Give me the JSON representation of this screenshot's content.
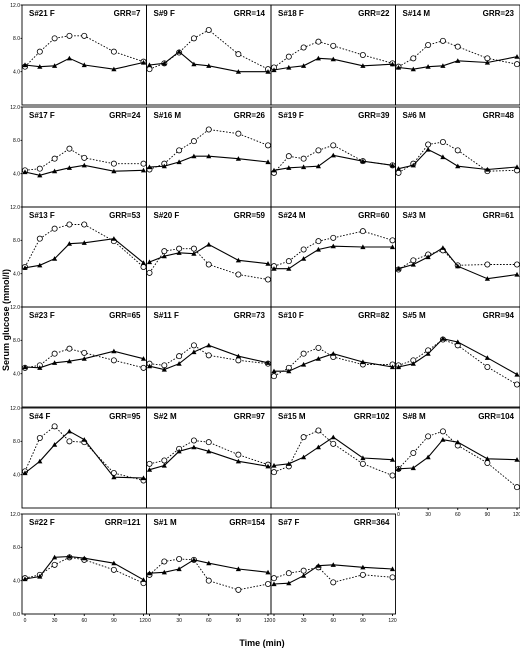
{
  "figure": {
    "ylabel": "Serum glucose (mmol/l)",
    "xlabel": "Time (min)",
    "y_ticks": [
      "12.0",
      "8.0",
      "4.0",
      "0.0"
    ],
    "x_ticks": [
      "0",
      "30",
      "60",
      "90",
      "120"
    ]
  },
  "chart_data": [
    {
      "type": "line",
      "subject": "S#21 F",
      "grr": "GRR=7",
      "x": [
        0,
        15,
        30,
        45,
        60,
        90,
        120
      ],
      "series": [
        {
          "values": [
            4.6,
            6.4,
            8.0,
            8.3,
            8.3,
            6.4,
            5.2
          ]
        },
        {
          "values": [
            4.8,
            4.6,
            4.7,
            5.6,
            4.8,
            4.3,
            5.1
          ]
        }
      ]
    },
    {
      "type": "line",
      "subject": "S#9 F",
      "grr": "GRR=14",
      "x": [
        0,
        15,
        30,
        45,
        60,
        90,
        120
      ],
      "series": [
        {
          "values": [
            4.3,
            5.0,
            6.3,
            8.0,
            9.0,
            6.1,
            4.3
          ]
        },
        {
          "values": [
            4.8,
            5.0,
            6.4,
            4.9,
            4.7,
            4.0,
            4.0
          ]
        }
      ]
    },
    {
      "type": "line",
      "subject": "S#18 F",
      "grr": "GRR=22",
      "x": [
        0,
        15,
        30,
        45,
        60,
        90,
        120
      ],
      "series": [
        {
          "values": [
            4.5,
            5.8,
            6.9,
            7.6,
            7.1,
            6.0,
            5.0
          ]
        },
        {
          "values": [
            4.2,
            4.5,
            4.7,
            5.6,
            5.5,
            4.7,
            4.9
          ]
        }
      ]
    },
    {
      "type": "line",
      "subject": "S#14 M",
      "grr": "GRR=23",
      "x": [
        0,
        15,
        30,
        45,
        60,
        90,
        120
      ],
      "series": [
        {
          "values": [
            4.6,
            5.6,
            7.2,
            7.7,
            7.0,
            5.6,
            4.9
          ]
        },
        {
          "values": [
            4.5,
            4.3,
            4.6,
            4.7,
            5.3,
            5.1,
            5.8
          ]
        }
      ]
    },
    {
      "type": "line",
      "subject": "S#17 F",
      "grr": "GRR=24",
      "x": [
        0,
        15,
        30,
        45,
        60,
        90,
        120
      ],
      "series": [
        {
          "values": [
            4.4,
            4.6,
            5.8,
            7.0,
            5.9,
            5.2,
            5.2
          ]
        },
        {
          "values": [
            4.2,
            3.8,
            4.3,
            4.7,
            5.0,
            4.3,
            4.4
          ]
        }
      ]
    },
    {
      "type": "line",
      "subject": "S#16 M",
      "grr": "GRR=26",
      "x": [
        0,
        15,
        30,
        45,
        60,
        90,
        120
      ],
      "series": [
        {
          "values": [
            4.5,
            5.2,
            6.8,
            7.9,
            9.3,
            8.8,
            7.4
          ]
        },
        {
          "values": [
            4.8,
            4.9,
            5.4,
            6.1,
            6.1,
            5.8,
            5.4
          ]
        }
      ]
    },
    {
      "type": "line",
      "subject": "S#19 F",
      "grr": "GRR=39",
      "x": [
        0,
        15,
        30,
        45,
        60,
        90,
        120
      ],
      "series": [
        {
          "values": [
            4.1,
            6.1,
            5.8,
            6.8,
            7.4,
            5.5,
            5.0
          ]
        },
        {
          "values": [
            4.4,
            4.7,
            4.8,
            4.9,
            6.2,
            5.5,
            5.0
          ]
        }
      ]
    },
    {
      "type": "line",
      "subject": "S#6 M",
      "grr": "GRR=48",
      "x": [
        0,
        15,
        30,
        45,
        60,
        90,
        120
      ],
      "series": [
        {
          "values": [
            4.1,
            5.2,
            7.5,
            7.8,
            6.8,
            4.3,
            4.4
          ]
        },
        {
          "values": [
            4.6,
            5.0,
            6.9,
            6.0,
            4.9,
            4.5,
            4.8
          ]
        }
      ]
    },
    {
      "type": "line",
      "subject": "S#13 F",
      "grr": "GRR=53",
      "x": [
        0,
        15,
        30,
        45,
        60,
        90,
        120
      ],
      "series": [
        {
          "values": [
            4.8,
            8.2,
            9.4,
            9.9,
            9.9,
            7.9,
            4.8
          ]
        },
        {
          "values": [
            4.7,
            5.0,
            5.8,
            7.6,
            7.7,
            8.2,
            5.3
          ]
        }
      ]
    },
    {
      "type": "line",
      "subject": "S#20 F",
      "grr": "GRR=59",
      "x": [
        0,
        15,
        30,
        45,
        60,
        90,
        120
      ],
      "series": [
        {
          "values": [
            4.1,
            6.7,
            7.0,
            7.0,
            5.1,
            3.9,
            3.3
          ]
        },
        {
          "values": [
            5.4,
            6.1,
            6.5,
            6.4,
            7.5,
            5.6,
            5.2
          ]
        }
      ]
    },
    {
      "type": "line",
      "subject": "S#24 M",
      "grr": "GRR=60",
      "x": [
        0,
        15,
        30,
        45,
        60,
        90,
        120
      ],
      "series": [
        {
          "values": [
            4.9,
            5.5,
            6.9,
            7.9,
            8.3,
            9.1,
            8.0
          ]
        },
        {
          "values": [
            4.6,
            4.6,
            5.8,
            6.9,
            7.3,
            7.2,
            7.2
          ]
        }
      ]
    },
    {
      "type": "line",
      "subject": "S#3 M",
      "grr": "GRR=61",
      "x": [
        0,
        15,
        30,
        45,
        60,
        90,
        120
      ],
      "series": [
        {
          "values": [
            4.5,
            5.6,
            6.3,
            6.8,
            5.0,
            5.1,
            5.1
          ]
        },
        {
          "values": [
            4.6,
            5.1,
            6.0,
            7.1,
            4.9,
            3.4,
            3.9
          ]
        }
      ]
    },
    {
      "type": "line",
      "subject": "S#23 F",
      "grr": "GRR=65",
      "x": [
        0,
        15,
        30,
        45,
        60,
        90,
        120
      ],
      "series": [
        {
          "values": [
            4.7,
            5.0,
            6.4,
            7.0,
            6.5,
            5.6,
            4.7
          ]
        },
        {
          "values": [
            4.8,
            4.7,
            5.3,
            5.5,
            5.8,
            6.7,
            5.8
          ]
        }
      ]
    },
    {
      "type": "line",
      "subject": "S#11 F",
      "grr": "GRR=73",
      "x": [
        0,
        15,
        30,
        45,
        60,
        90,
        120
      ],
      "series": [
        {
          "values": [
            5.2,
            5.0,
            6.1,
            7.4,
            6.2,
            5.6,
            5.2
          ]
        },
        {
          "values": [
            4.9,
            4.5,
            5.2,
            6.6,
            7.4,
            6.1,
            5.3
          ]
        }
      ]
    },
    {
      "type": "line",
      "subject": "S#10 F",
      "grr": "GRR=82",
      "x": [
        0,
        15,
        30,
        45,
        60,
        90,
        120
      ],
      "series": [
        {
          "values": [
            3.7,
            4.7,
            6.4,
            7.1,
            6.0,
            5.1,
            5.1
          ]
        },
        {
          "values": [
            4.3,
            4.3,
            5.1,
            5.8,
            6.4,
            5.4,
            4.8
          ]
        }
      ]
    },
    {
      "type": "line",
      "subject": "S#5 M",
      "grr": "GRR=94",
      "x": [
        0,
        15,
        30,
        45,
        60,
        90,
        120
      ],
      "series": [
        {
          "values": [
            5.0,
            5.6,
            6.8,
            8.1,
            7.4,
            4.8,
            2.7
          ]
        },
        {
          "values": [
            4.8,
            5.2,
            6.4,
            8.2,
            7.8,
            5.9,
            3.9
          ]
        }
      ]
    },
    {
      "type": "line",
      "subject": "S#4 F",
      "grr": "GRR=95",
      "x": [
        0,
        15,
        30,
        45,
        60,
        90,
        120
      ],
      "series": [
        {
          "values": [
            4.4,
            8.4,
            9.8,
            8.0,
            7.9,
            4.2,
            3.3
          ]
        },
        {
          "values": [
            4.2,
            5.6,
            7.6,
            9.2,
            8.2,
            3.7,
            3.6
          ]
        }
      ]
    },
    {
      "type": "line",
      "subject": "S#2 M",
      "grr": "GRR=97",
      "x": [
        0,
        15,
        30,
        45,
        60,
        90,
        120
      ],
      "series": [
        {
          "values": [
            5.3,
            5.7,
            7.1,
            8.1,
            7.9,
            6.4,
            5.2
          ]
        },
        {
          "values": [
            4.6,
            5.1,
            6.8,
            7.3,
            6.8,
            5.6,
            5.0
          ]
        }
      ]
    },
    {
      "type": "line",
      "subject": "S#15 M",
      "grr": "GRR=102",
      "x": [
        0,
        15,
        30,
        45,
        60,
        90,
        120
      ],
      "series": [
        {
          "values": [
            4.3,
            5.0,
            8.5,
            9.3,
            7.7,
            5.3,
            3.9
          ]
        },
        {
          "values": [
            5.1,
            5.3,
            6.1,
            7.3,
            8.5,
            6.0,
            5.8
          ]
        }
      ]
    },
    {
      "type": "line",
      "subject": "S#8 M",
      "grr": "GRR=104",
      "x": [
        0,
        15,
        30,
        45,
        60,
        90,
        120
      ],
      "series": [
        {
          "values": [
            4.7,
            6.6,
            8.6,
            9.2,
            7.5,
            5.4,
            2.5
          ]
        },
        {
          "values": [
            4.7,
            4.8,
            6.1,
            8.2,
            7.9,
            5.9,
            5.8
          ]
        }
      ]
    },
    {
      "type": "line",
      "subject": "S#22 F",
      "grr": "GRR=121",
      "x": [
        0,
        15,
        30,
        45,
        60,
        90,
        120
      ],
      "series": [
        {
          "values": [
            4.3,
            4.7,
            5.9,
            6.8,
            6.5,
            5.3,
            3.7
          ]
        },
        {
          "values": [
            4.2,
            4.5,
            6.8,
            6.9,
            6.7,
            6.1,
            4.1
          ]
        }
      ]
    },
    {
      "type": "line",
      "subject": "S#1 M",
      "grr": "GRR=154",
      "x": [
        0,
        15,
        30,
        45,
        60,
        90,
        120
      ],
      "series": [
        {
          "values": [
            4.7,
            6.3,
            6.6,
            6.5,
            4.0,
            2.9,
            3.6
          ]
        },
        {
          "values": [
            4.9,
            5.0,
            5.4,
            6.5,
            6.1,
            5.4,
            5.0
          ]
        }
      ]
    },
    {
      "type": "line",
      "subject": "S#7 F",
      "grr": "GRR=364",
      "x": [
        0,
        15,
        30,
        45,
        60,
        90,
        120
      ],
      "series": [
        {
          "values": [
            4.3,
            4.9,
            5.2,
            5.6,
            3.8,
            4.7,
            4.4
          ]
        },
        {
          "values": [
            3.6,
            3.7,
            4.6,
            5.8,
            5.9,
            5.6,
            5.4
          ]
        }
      ]
    }
  ]
}
